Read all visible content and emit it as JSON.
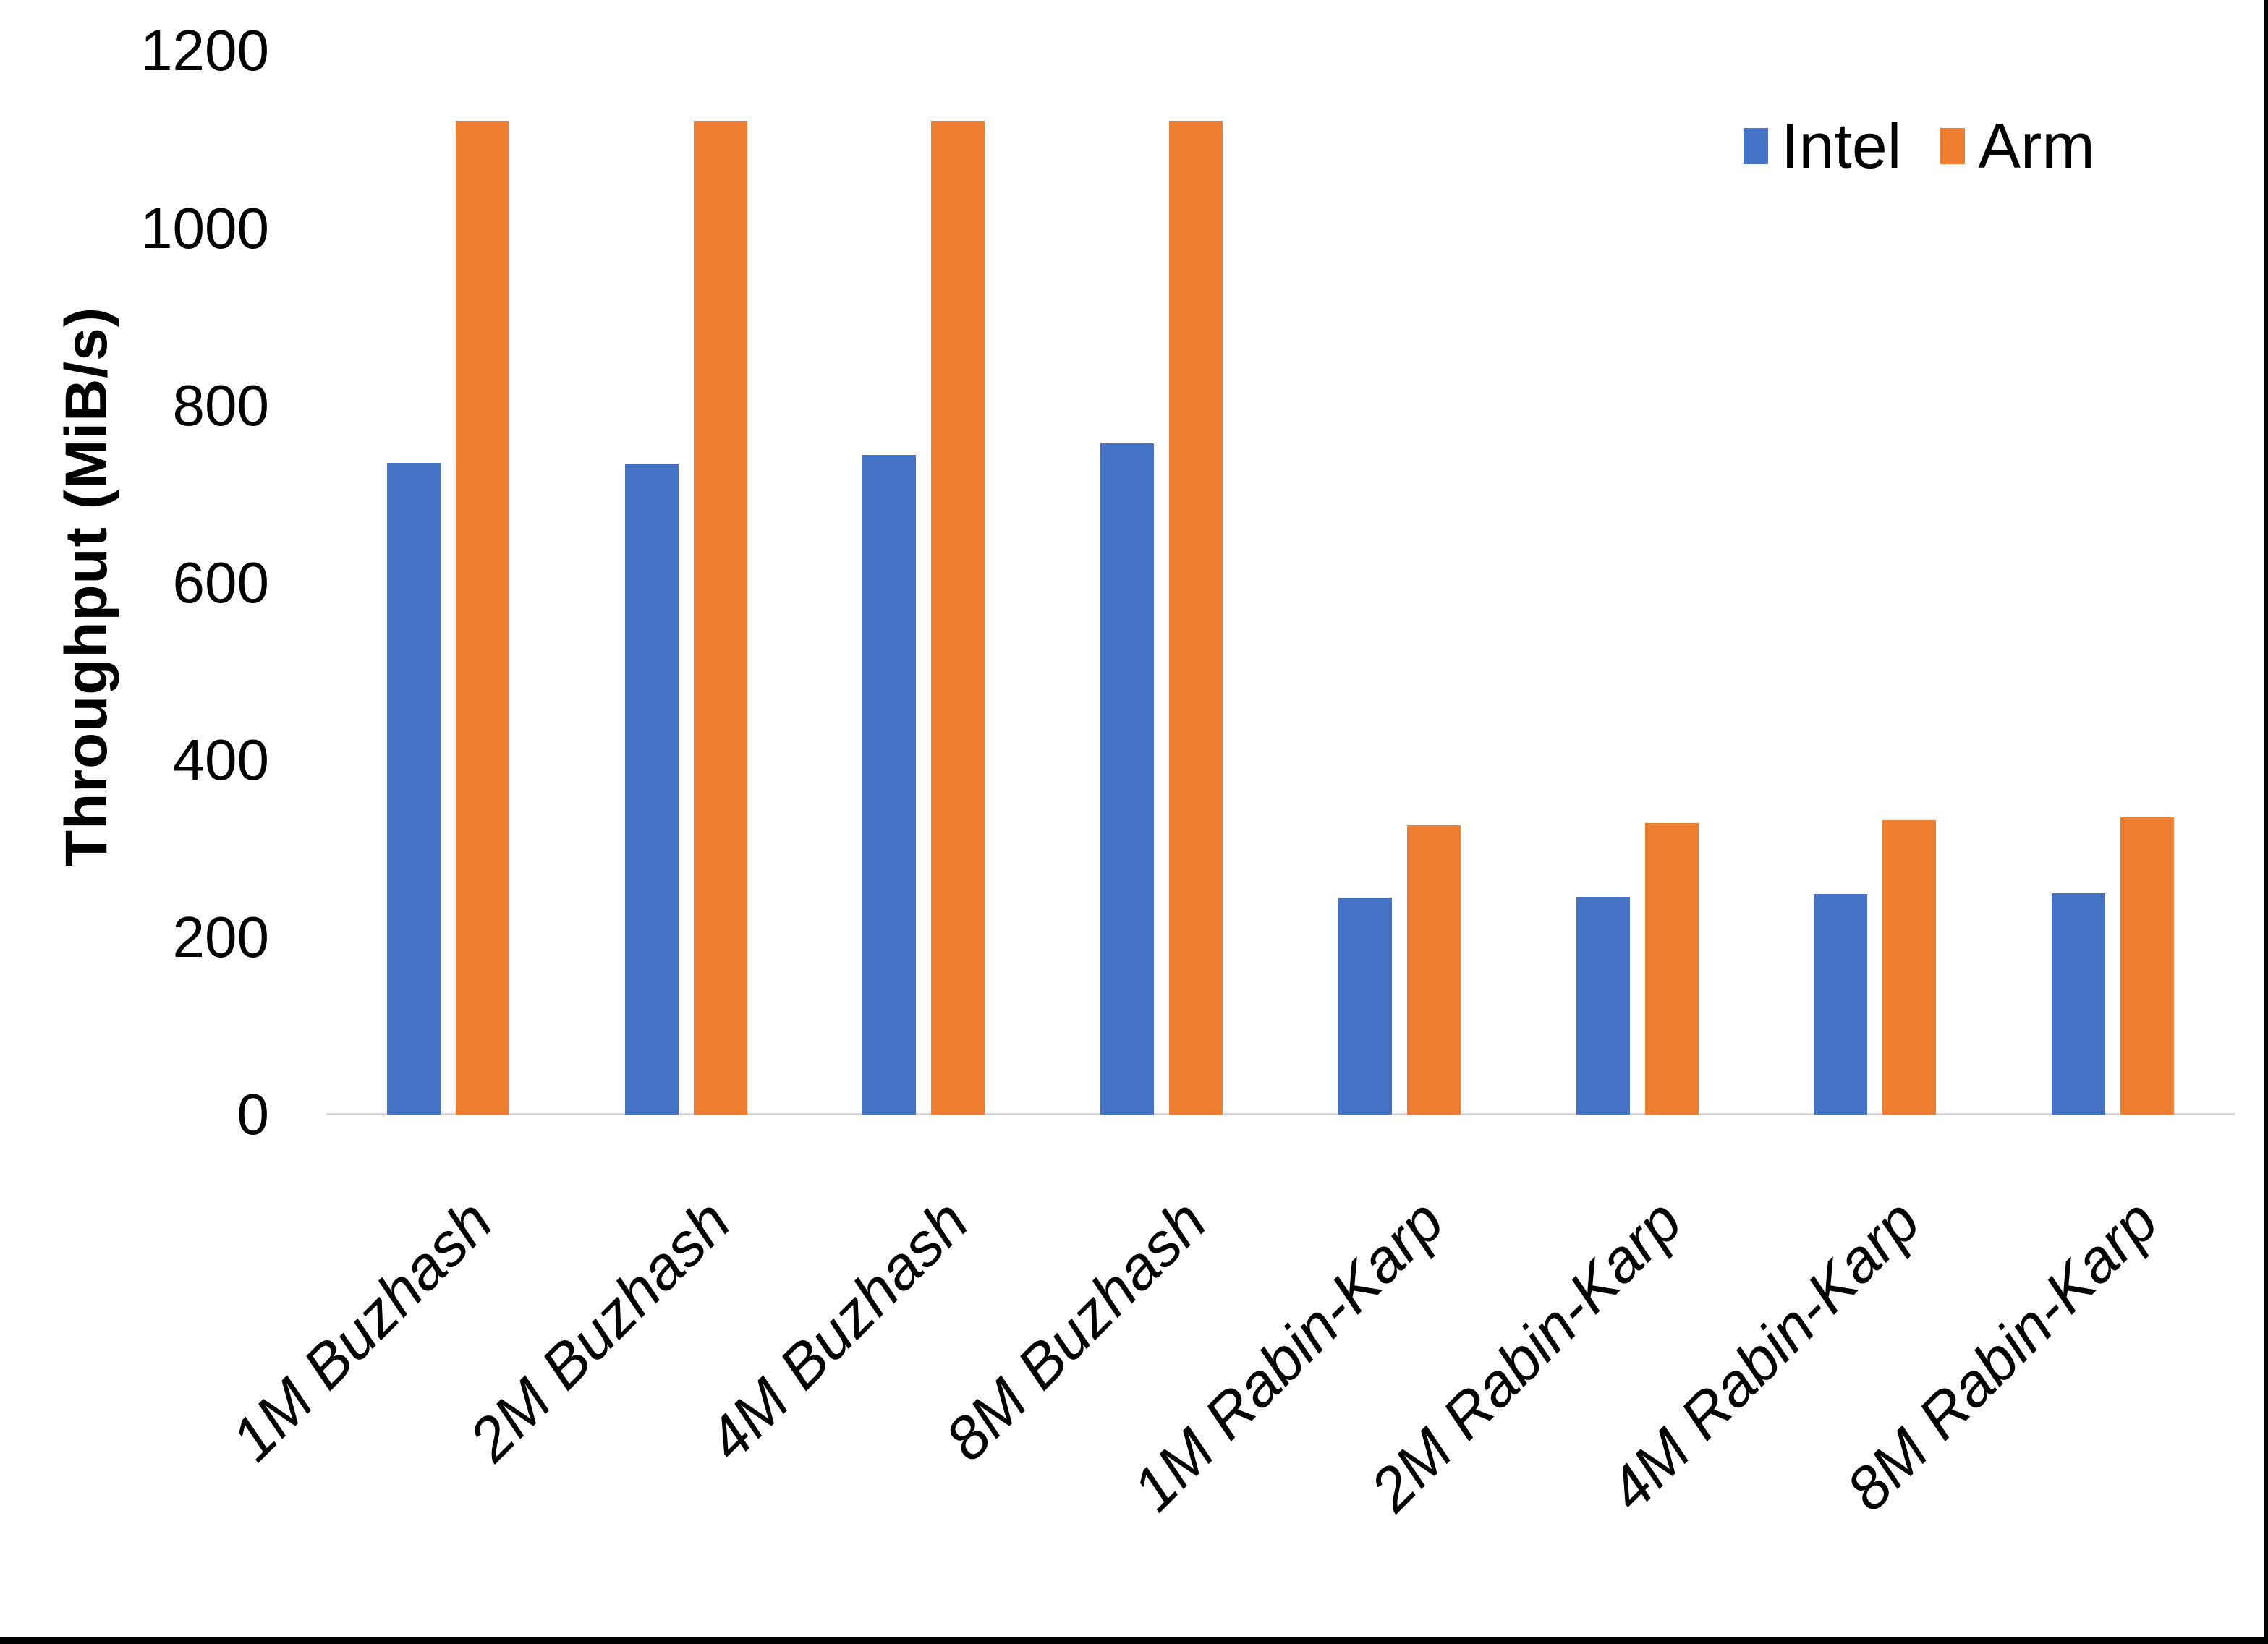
{
  "chart_data": {
    "type": "bar",
    "title": "",
    "xlabel": "",
    "ylabel": "Throughput (MiB/s)",
    "ylim": [
      0,
      1200
    ],
    "yticks": [
      0,
      200,
      400,
      600,
      800,
      1000,
      1200
    ],
    "grid": false,
    "legend_position": "top-right",
    "categories": [
      "1M Buzhash",
      "2M Buzhash",
      "4M Buzhash",
      "8M Buzhash",
      "1M Rabin-Karp",
      "2M Rabin-Karp",
      "4M Rabin-Karp",
      "8M Rabin-Karp"
    ],
    "series": [
      {
        "name": "Intel",
        "color": "#4472C4",
        "values": [
          735,
          734,
          744,
          757,
          245,
          246,
          249,
          250
        ]
      },
      {
        "name": "Arm",
        "color": "#ED7D31",
        "values": [
          1121,
          1121,
          1121,
          1121,
          326,
          329,
          332,
          335
        ]
      }
    ],
    "axis_line_color": "#D9D9D9"
  }
}
